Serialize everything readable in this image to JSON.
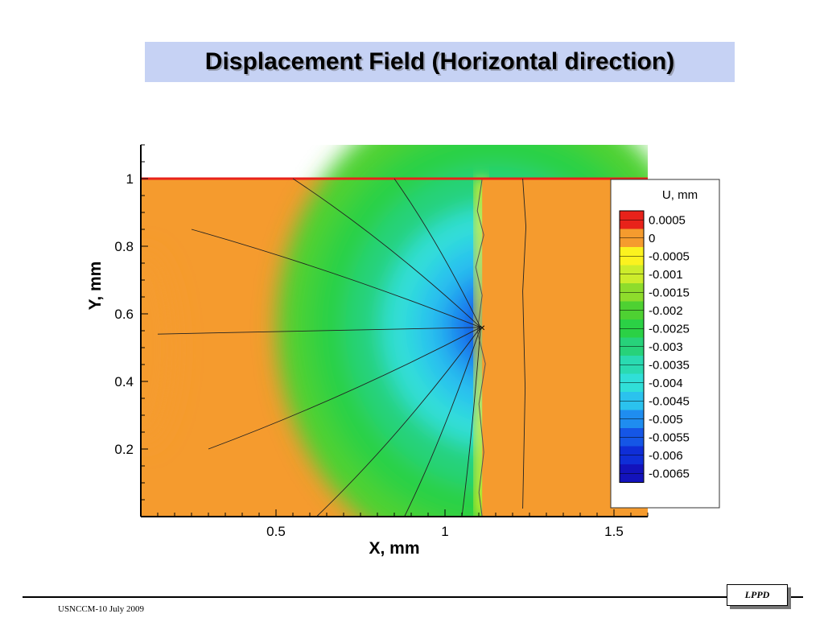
{
  "slide": {
    "title": "Displacement Field (Horizontal direction)",
    "footer": "USNCCM-10 July 2009",
    "logo_text": "LPPD"
  },
  "chart_data": {
    "type": "heatmap",
    "xlabel": "X, mm",
    "ylabel": "Y, mm",
    "xlim": [
      0.1,
      1.6
    ],
    "ylim": [
      0.0,
      1.1
    ],
    "x_ticks": [
      "0.5",
      "1",
      "1.5"
    ],
    "x_tick_values": [
      0.5,
      1.0,
      1.5
    ],
    "y_ticks": [
      "0.2",
      "0.4",
      "0.6",
      "0.8",
      "1"
    ],
    "y_tick_values": [
      0.2,
      0.4,
      0.6,
      0.8,
      1.0
    ],
    "legend": {
      "title": "U, mm",
      "placement": "right",
      "levels": [
        {
          "label": "0.0005",
          "color": "#e8221a"
        },
        {
          "label": "0",
          "color": "#f59b2e"
        },
        {
          "label": "-0.0005",
          "color": "#fbf21f"
        },
        {
          "label": "-0.001",
          "color": "#cdec2b"
        },
        {
          "label": "-0.0015",
          "color": "#8edc2c"
        },
        {
          "label": "-0.002",
          "color": "#4ed132"
        },
        {
          "label": "-0.0025",
          "color": "#2bd145"
        },
        {
          "label": "-0.003",
          "color": "#27d27a"
        },
        {
          "label": "-0.0035",
          "color": "#2adab1"
        },
        {
          "label": "-0.004",
          "color": "#30dfd8"
        },
        {
          "label": "-0.0045",
          "color": "#2bc2ee"
        },
        {
          "label": "-0.005",
          "color": "#1f8df0"
        },
        {
          "label": "-0.0055",
          "color": "#1556e6"
        },
        {
          "label": "-0.006",
          "color": "#0f2ed7"
        },
        {
          "label": "-0.0065",
          "color": "#1313bc"
        }
      ]
    },
    "crack_tip": {
      "x": 1.11,
      "y": 0.56
    },
    "field_boundary_x": 1.11,
    "top_edge_y": 1.0,
    "streamline_endpoints": [
      [
        0.25,
        0.85
      ],
      [
        0.15,
        0.54
      ],
      [
        0.3,
        0.2
      ],
      [
        0.62,
        0.0
      ],
      [
        0.88,
        0.0
      ],
      [
        1.05,
        0.0
      ],
      [
        0.55,
        1.0
      ],
      [
        0.85,
        1.0
      ]
    ]
  }
}
